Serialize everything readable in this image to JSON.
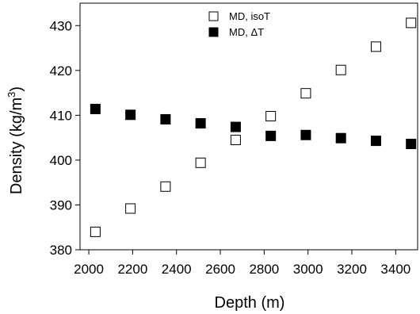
{
  "chart_data": {
    "type": "scatter",
    "xlabel": "Depth (m)",
    "ylabel_main": "Density (kg/m",
    "ylabel_sup": "3",
    "ylabel_end": ")",
    "xlim": [
      1960,
      3500
    ],
    "ylim": [
      380,
      435
    ],
    "x_ticks": [
      2000,
      2200,
      2400,
      2600,
      2800,
      3000,
      3200,
      3400
    ],
    "y_ticks": [
      380,
      390,
      400,
      410,
      420,
      430
    ],
    "grid": false,
    "legend_position": "top-center",
    "series": [
      {
        "name": "MD, isoT",
        "marker": "open-square",
        "x": [
          2030,
          2190,
          2350,
          2510,
          2670,
          2830,
          2990,
          3150,
          3310,
          3470
        ],
        "y": [
          384,
          389.2,
          394.1,
          399.4,
          404.5,
          409.8,
          414.9,
          420.1,
          425.3,
          430.6
        ]
      },
      {
        "name": "MD, ΔT",
        "marker": "filled-square",
        "x": [
          2030,
          2190,
          2350,
          2510,
          2670,
          2830,
          2990,
          3150,
          3310,
          3470
        ],
        "y": [
          411.4,
          410.1,
          409.1,
          408.2,
          407.4,
          405.4,
          405.6,
          404.9,
          404.3,
          403.6
        ]
      }
    ]
  }
}
